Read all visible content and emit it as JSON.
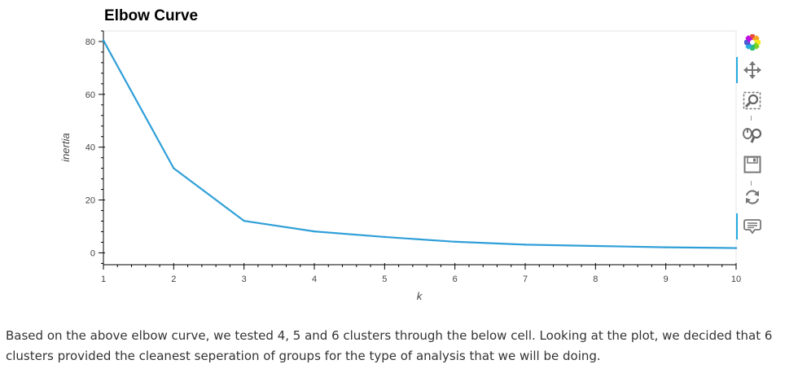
{
  "chart_data": {
    "type": "line",
    "title": "Elbow Curve",
    "xlabel": "k",
    "ylabel": "inertia",
    "x": [
      1,
      2,
      3,
      4,
      5,
      6,
      7,
      8,
      9,
      10
    ],
    "series": [
      {
        "values": [
          80.4,
          32.0,
          12.1,
          8.1,
          6.0,
          4.2,
          3.1,
          2.6,
          2.1,
          1.8
        ],
        "color": "#2f9fd8"
      }
    ],
    "xlim": [
      1,
      10
    ],
    "ylim": [
      -4.5,
      84
    ],
    "x_ticks": [
      1,
      2,
      3,
      4,
      5,
      6,
      7,
      8,
      9,
      10
    ],
    "y_ticks": [
      0,
      20,
      40,
      60,
      80
    ],
    "grid": false,
    "legend": "none"
  },
  "toolbar": {
    "tools": [
      "bokeh-logo-icon",
      "pan-icon",
      "box-zoom-icon",
      "wheel-zoom-icon",
      "save-icon",
      "reset-icon",
      "hover-icon"
    ]
  },
  "description": "Based on the above elbow curve, we tested 4, 5 and 6 clusters through the below cell. Looking at the plot, we decided that 6 clusters provided the cleanest seperation of groups for the type of analysis that we will be doing."
}
